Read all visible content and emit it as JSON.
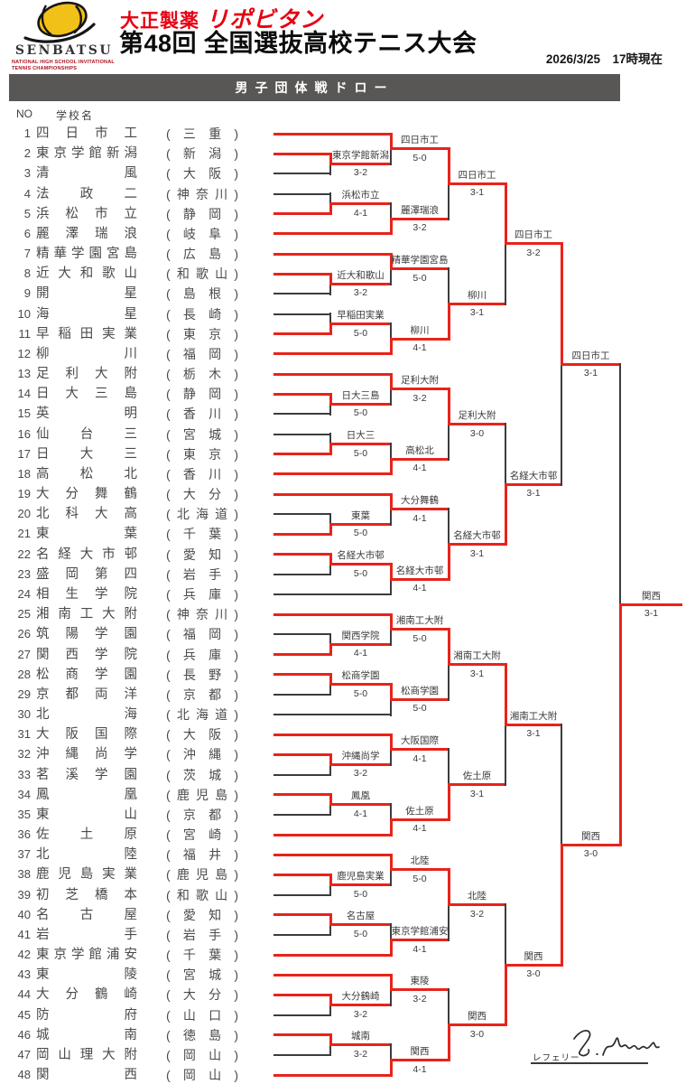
{
  "header": {
    "logo": {
      "senbatsu": "SENBATSU",
      "subtitle_line1": "NATIONAL HIGH SCHOOL INVITATIONAL",
      "subtitle_line2": "TENNIS CHAMPIONSHIPS"
    },
    "sponsor_maker": "大正製薬",
    "sponsor_brand": "リポビタン",
    "title": "第48回 全国選抜高校テニス大会",
    "datetime": "2026/3/25　17時現在",
    "banner_title": "男子団体戦ドロー"
  },
  "list_header": {
    "no": "NO",
    "school": "学校名"
  },
  "format": {
    "paren_open": "(",
    "paren_close": ")"
  },
  "teams": [
    {
      "no": 1,
      "name": "四日市工",
      "pref": "三重"
    },
    {
      "no": 2,
      "name": "東京学館新潟",
      "pref": "新潟"
    },
    {
      "no": 3,
      "name": "清風",
      "pref": "大阪"
    },
    {
      "no": 4,
      "name": "法政二",
      "pref": "神奈川"
    },
    {
      "no": 5,
      "name": "浜松市立",
      "pref": "静岡"
    },
    {
      "no": 6,
      "name": "麗澤瑞浪",
      "pref": "岐阜"
    },
    {
      "no": 7,
      "name": "精華学園宮島",
      "pref": "広島"
    },
    {
      "no": 8,
      "name": "近大和歌山",
      "pref": "和歌山"
    },
    {
      "no": 9,
      "name": "開星",
      "pref": "島根"
    },
    {
      "no": 10,
      "name": "海星",
      "pref": "長崎"
    },
    {
      "no": 11,
      "name": "早稲田実業",
      "pref": "東京"
    },
    {
      "no": 12,
      "name": "柳川",
      "pref": "福岡"
    },
    {
      "no": 13,
      "name": "足利大附",
      "pref": "栃木"
    },
    {
      "no": 14,
      "name": "日大三島",
      "pref": "静岡"
    },
    {
      "no": 15,
      "name": "英明",
      "pref": "香川"
    },
    {
      "no": 16,
      "name": "仙台三",
      "pref": "宮城"
    },
    {
      "no": 17,
      "name": "日大三",
      "pref": "東京"
    },
    {
      "no": 18,
      "name": "高松北",
      "pref": "香川"
    },
    {
      "no": 19,
      "name": "大分舞鶴",
      "pref": "大分"
    },
    {
      "no": 20,
      "name": "北科大高",
      "pref": "北海道"
    },
    {
      "no": 21,
      "name": "東葉",
      "pref": "千葉"
    },
    {
      "no": 22,
      "name": "名経大市邨",
      "pref": "愛知"
    },
    {
      "no": 23,
      "name": "盛岡第四",
      "pref": "岩手"
    },
    {
      "no": 24,
      "name": "相生学院",
      "pref": "兵庫"
    },
    {
      "no": 25,
      "name": "湘南工大附",
      "pref": "神奈川"
    },
    {
      "no": 26,
      "name": "筑陽学園",
      "pref": "福岡"
    },
    {
      "no": 27,
      "name": "関西学院",
      "pref": "兵庫"
    },
    {
      "no": 28,
      "name": "松商学園",
      "pref": "長野"
    },
    {
      "no": 29,
      "name": "京都両洋",
      "pref": "京都"
    },
    {
      "no": 30,
      "name": "北海",
      "pref": "北海道"
    },
    {
      "no": 31,
      "name": "大阪国際",
      "pref": "大阪"
    },
    {
      "no": 32,
      "name": "沖縄尚学",
      "pref": "沖縄"
    },
    {
      "no": 33,
      "name": "茗溪学園",
      "pref": "茨城"
    },
    {
      "no": 34,
      "name": "鳳凰",
      "pref": "鹿児島"
    },
    {
      "no": 35,
      "name": "東山",
      "pref": "京都"
    },
    {
      "no": 36,
      "name": "佐土原",
      "pref": "宮崎"
    },
    {
      "no": 37,
      "name": "北陸",
      "pref": "福井"
    },
    {
      "no": 38,
      "name": "鹿児島実業",
      "pref": "鹿児島"
    },
    {
      "no": 39,
      "name": "初芝橋本",
      "pref": "和歌山"
    },
    {
      "no": 40,
      "name": "名古屋",
      "pref": "愛知"
    },
    {
      "no": 41,
      "name": "岩手",
      "pref": "岩手"
    },
    {
      "no": 42,
      "name": "東京学館浦安",
      "pref": "千葉"
    },
    {
      "no": 43,
      "name": "東陵",
      "pref": "宮城"
    },
    {
      "no": 44,
      "name": "大分鶴崎",
      "pref": "大分"
    },
    {
      "no": 45,
      "name": "防府",
      "pref": "山口"
    },
    {
      "no": 46,
      "name": "城南",
      "pref": "徳島"
    },
    {
      "no": 47,
      "name": "岡山理大附",
      "pref": "岡山"
    },
    {
      "no": 48,
      "name": "関西",
      "pref": "岡山"
    }
  ],
  "bracket": {
    "red": "#e8231a",
    "black": "#3c3c3c",
    "matches": [
      {
        "id": "m1",
        "round": 1,
        "top": "t2",
        "bottom": "t3",
        "win": "top",
        "name": "東京学館新潟",
        "score": "3-2"
      },
      {
        "id": "m2",
        "round": 2,
        "top": "t1",
        "bottom": "m1",
        "win": "top",
        "name": "四日市工",
        "score": "5-0"
      },
      {
        "id": "m3",
        "round": 1,
        "top": "t4",
        "bottom": "t5",
        "win": "bottom",
        "name": "浜松市立",
        "score": "4-1"
      },
      {
        "id": "m4",
        "round": 2,
        "top": "m3",
        "bottom": "t6",
        "win": "bottom",
        "name": "麗澤瑞浪",
        "score": "3-2"
      },
      {
        "id": "m5",
        "round": 3,
        "top": "m2",
        "bottom": "m4",
        "win": "top",
        "name": "四日市工",
        "score": "3-1"
      },
      {
        "id": "m6",
        "round": 1,
        "top": "t8",
        "bottom": "t9",
        "win": "top",
        "name": "近大和歌山",
        "score": "3-2"
      },
      {
        "id": "m7",
        "round": 2,
        "top": "t7",
        "bottom": "m6",
        "win": "top",
        "name": "精華学園宮島",
        "score": "5-0"
      },
      {
        "id": "m8",
        "round": 1,
        "top": "t10",
        "bottom": "t11",
        "win": "bottom",
        "name": "早稲田実業",
        "score": "5-0"
      },
      {
        "id": "m9",
        "round": 2,
        "top": "m8",
        "bottom": "t12",
        "win": "bottom",
        "name": "柳川",
        "score": "4-1"
      },
      {
        "id": "m10",
        "round": 3,
        "top": "m7",
        "bottom": "m9",
        "win": "bottom",
        "name": "柳川",
        "score": "3-1"
      },
      {
        "id": "m11",
        "round": 4,
        "top": "m5",
        "bottom": "m10",
        "win": "top",
        "name": "四日市工",
        "score": "3-2"
      },
      {
        "id": "m12",
        "round": 1,
        "top": "t14",
        "bottom": "t15",
        "win": "top",
        "name": "日大三島",
        "score": "5-0"
      },
      {
        "id": "m13",
        "round": 2,
        "top": "t13",
        "bottom": "m12",
        "win": "top",
        "name": "足利大附",
        "score": "3-2"
      },
      {
        "id": "m14",
        "round": 1,
        "top": "t16",
        "bottom": "t17",
        "win": "bottom",
        "name": "日大三",
        "score": "5-0"
      },
      {
        "id": "m15",
        "round": 2,
        "top": "m14",
        "bottom": "t18",
        "win": "bottom",
        "name": "高松北",
        "score": "4-1"
      },
      {
        "id": "m16",
        "round": 3,
        "top": "m13",
        "bottom": "m15",
        "win": "top",
        "name": "足利大附",
        "score": "3-0"
      },
      {
        "id": "m17",
        "round": 1,
        "top": "t20",
        "bottom": "t21",
        "win": "bottom",
        "name": "東葉",
        "score": "5-0"
      },
      {
        "id": "m18",
        "round": 2,
        "top": "t19",
        "bottom": "m17",
        "win": "top",
        "name": "大分舞鶴",
        "score": "4-1"
      },
      {
        "id": "m19",
        "round": 1,
        "top": "t22",
        "bottom": "t23",
        "win": "top",
        "name": "名経大市邨",
        "score": "5-0"
      },
      {
        "id": "m20",
        "round": 2,
        "top": "m19",
        "bottom": "t24",
        "win": "top",
        "name": "名経大市邨",
        "score": "4-1"
      },
      {
        "id": "m21",
        "round": 3,
        "top": "m18",
        "bottom": "m20",
        "win": "bottom",
        "name": "名経大市邨",
        "score": "3-1"
      },
      {
        "id": "m22",
        "round": 4,
        "top": "m16",
        "bottom": "m21",
        "win": "bottom",
        "name": "名経大市邨",
        "score": "3-1"
      },
      {
        "id": "m23",
        "round": 5,
        "top": "m11",
        "bottom": "m22",
        "win": "top",
        "name": "四日市工",
        "score": "3-1"
      },
      {
        "id": "m24",
        "round": 1,
        "top": "t26",
        "bottom": "t27",
        "win": "bottom",
        "name": "関西学院",
        "score": "4-1"
      },
      {
        "id": "m25",
        "round": 2,
        "top": "t25",
        "bottom": "m24",
        "win": "top",
        "name": "湘南工大附",
        "score": "5-0"
      },
      {
        "id": "m26",
        "round": 1,
        "top": "t28",
        "bottom": "t29",
        "win": "top",
        "name": "松商学園",
        "score": "5-0"
      },
      {
        "id": "m27",
        "round": 2,
        "top": "m26",
        "bottom": "t30",
        "win": "top",
        "name": "松商学園",
        "score": "5-0"
      },
      {
        "id": "m28",
        "round": 3,
        "top": "m25",
        "bottom": "m27",
        "win": "top",
        "name": "湘南工大附",
        "score": "3-1"
      },
      {
        "id": "m29",
        "round": 1,
        "top": "t32",
        "bottom": "t33",
        "win": "top",
        "name": "沖縄尚学",
        "score": "3-2"
      },
      {
        "id": "m30",
        "round": 2,
        "top": "t31",
        "bottom": "m29",
        "win": "top",
        "name": "大阪国際",
        "score": "4-1"
      },
      {
        "id": "m31",
        "round": 1,
        "top": "t34",
        "bottom": "t35",
        "win": "top",
        "name": "鳳凰",
        "score": "4-1"
      },
      {
        "id": "m32",
        "round": 2,
        "top": "m31",
        "bottom": "t36",
        "win": "bottom",
        "name": "佐土原",
        "score": "4-1"
      },
      {
        "id": "m33",
        "round": 3,
        "top": "m30",
        "bottom": "m32",
        "win": "bottom",
        "name": "佐土原",
        "score": "3-1"
      },
      {
        "id": "m34",
        "round": 4,
        "top": "m28",
        "bottom": "m33",
        "win": "top",
        "name": "湘南工大附",
        "score": "3-1"
      },
      {
        "id": "m35",
        "round": 1,
        "top": "t38",
        "bottom": "t39",
        "win": "top",
        "name": "鹿児島実業",
        "score": "5-0"
      },
      {
        "id": "m36",
        "round": 2,
        "top": "t37",
        "bottom": "m35",
        "win": "top",
        "name": "北陸",
        "score": "5-0"
      },
      {
        "id": "m37",
        "round": 1,
        "top": "t40",
        "bottom": "t41",
        "win": "top",
        "name": "名古屋",
        "score": "5-0"
      },
      {
        "id": "m38",
        "round": 2,
        "top": "m37",
        "bottom": "t42",
        "win": "bottom",
        "name": "東京学館浦安",
        "score": "4-1"
      },
      {
        "id": "m39",
        "round": 3,
        "top": "m36",
        "bottom": "m38",
        "win": "top",
        "name": "北陸",
        "score": "3-2"
      },
      {
        "id": "m40",
        "round": 1,
        "top": "t44",
        "bottom": "t45",
        "win": "top",
        "name": "大分鶴崎",
        "score": "3-2"
      },
      {
        "id": "m41",
        "round": 2,
        "top": "t43",
        "bottom": "m40",
        "win": "top",
        "name": "東陵",
        "score": "3-2"
      },
      {
        "id": "m42",
        "round": 1,
        "top": "t46",
        "bottom": "t47",
        "win": "top",
        "name": "城南",
        "score": "3-2"
      },
      {
        "id": "m43",
        "round": 2,
        "top": "m42",
        "bottom": "t48",
        "win": "bottom",
        "name": "関西",
        "score": "4-1"
      },
      {
        "id": "m44",
        "round": 3,
        "top": "m41",
        "bottom": "m43",
        "win": "bottom",
        "name": "関西",
        "score": "3-0"
      },
      {
        "id": "m45",
        "round": 4,
        "top": "m39",
        "bottom": "m44",
        "win": "bottom",
        "name": "関西",
        "score": "3-0"
      },
      {
        "id": "m46",
        "round": 5,
        "top": "m34",
        "bottom": "m45",
        "win": "bottom",
        "name": "関西",
        "score": "3-0"
      },
      {
        "id": "m47",
        "round": 6,
        "top": "m23",
        "bottom": "m46",
        "win": "bottom",
        "name": "関西",
        "score": "3-1"
      }
    ]
  },
  "referee": {
    "label": "レフェリー"
  }
}
